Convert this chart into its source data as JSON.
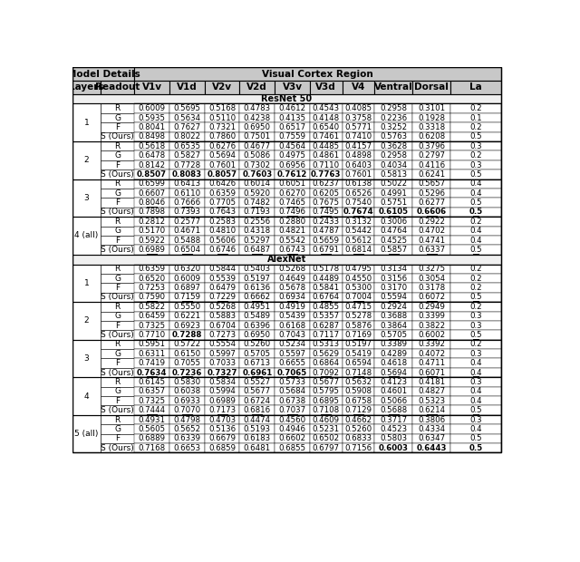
{
  "col_headers": [
    "Layers",
    "Readout",
    "V1v",
    "V1d",
    "V2v",
    "V2d",
    "V3v",
    "V3d",
    "V4",
    "Ventral",
    "Dorsal",
    "La"
  ],
  "section_resnet": "ResNet 50",
  "section_alexnet": "AlexNet",
  "resnet_data": [
    {
      "layer": "1",
      "readout": "R",
      "vals": [
        "0.6009",
        "0.5695",
        "0.5168",
        "0.4783",
        "0.4612",
        "0.4543",
        "0.4085",
        "0.2958",
        "0.3101",
        "0.2"
      ],
      "bold": [],
      "underline": []
    },
    {
      "layer": "",
      "readout": "G",
      "vals": [
        "0.5935",
        "0.5634",
        "0.5110",
        "0.4238",
        "0.4135",
        "0.4148",
        "0.3758",
        "0.2236",
        "0.1928",
        "0.1"
      ],
      "bold": [],
      "underline": []
    },
    {
      "layer": "",
      "readout": "F",
      "vals": [
        "0.8041",
        "0.7627",
        "0.7321",
        "0.6950",
        "0.6517",
        "0.6540",
        "0.5771",
        "0.3252",
        "0.3318",
        "0.2"
      ],
      "bold": [],
      "underline": []
    },
    {
      "layer": "",
      "readout": "S (Ours)",
      "vals": [
        "0.8498",
        "0.8022",
        "0.7860",
        "0.7501",
        "0.7559",
        "0.7461",
        "0.7410",
        "0.5763",
        "0.6208",
        "0.5"
      ],
      "bold": [],
      "underline": []
    },
    {
      "layer": "2",
      "readout": "R",
      "vals": [
        "0.5618",
        "0.6535",
        "0.6276",
        "0.4677",
        "0.4564",
        "0.4485",
        "0.4157",
        "0.3628",
        "0.3796",
        "0.3"
      ],
      "bold": [],
      "underline": []
    },
    {
      "layer": "",
      "readout": "G",
      "vals": [
        "0.6478",
        "0.5827",
        "0.5694",
        "0.5086",
        "0.4975",
        "0.4861",
        "0.4898",
        "0.2958",
        "0.2797",
        "0.2"
      ],
      "bold": [],
      "underline": []
    },
    {
      "layer": "",
      "readout": "F",
      "vals": [
        "0.8142",
        "0.7728",
        "0.7601",
        "0.7302",
        "0.6956",
        "0.7110",
        "0.6403",
        "0.4034",
        "0.4116",
        "0.3"
      ],
      "bold": [],
      "underline": []
    },
    {
      "layer": "",
      "readout": "S (Ours)",
      "vals": [
        "0.8507",
        "0.8083",
        "0.8057",
        "0.7603",
        "0.7612",
        "0.7763",
        "0.7601",
        "0.5813",
        "0.6241",
        "0.5"
      ],
      "bold": [
        0,
        1,
        2,
        3,
        4,
        5
      ],
      "underline": []
    },
    {
      "layer": "3",
      "readout": "R",
      "vals": [
        "0.6599",
        "0.6413",
        "0.6426",
        "0.6014",
        "0.6051",
        "0.6237",
        "0.6138",
        "0.5022",
        "0.5657",
        "0.4"
      ],
      "bold": [],
      "underline": []
    },
    {
      "layer": "",
      "readout": "G",
      "vals": [
        "0.6607",
        "0.6110",
        "0.6359",
        "0.5920",
        "0.6270",
        "0.6205",
        "0.6526",
        "0.4991",
        "0.5296",
        "0.4"
      ],
      "bold": [],
      "underline": []
    },
    {
      "layer": "",
      "readout": "F",
      "vals": [
        "0.8046",
        "0.7666",
        "0.7705",
        "0.7482",
        "0.7465",
        "0.7675",
        "0.7540",
        "0.5751",
        "0.6277",
        "0.5"
      ],
      "bold": [],
      "underline": [
        0,
        1,
        2,
        3,
        4,
        5
      ]
    },
    {
      "layer": "",
      "readout": "S (Ours)",
      "vals": [
        "0.7898",
        "0.7393",
        "0.7643",
        "0.7193",
        "0.7496",
        "0.7495",
        "0.7674",
        "0.6105",
        "0.6606",
        "0.5"
      ],
      "bold": [
        6,
        7,
        8,
        9
      ],
      "underline": [
        4,
        5,
        6,
        7,
        8,
        9
      ]
    },
    {
      "layer": "4 (all)",
      "readout": "R",
      "vals": [
        "0.2812",
        "0.2577",
        "0.2583",
        "0.2556",
        "0.2880",
        "0.2433",
        "0.3132",
        "0.3006",
        "0.2922",
        "0.2"
      ],
      "bold": [],
      "underline": []
    },
    {
      "layer": "",
      "readout": "G",
      "vals": [
        "0.5170",
        "0.4671",
        "0.4810",
        "0.4318",
        "0.4821",
        "0.4787",
        "0.5442",
        "0.4764",
        "0.4702",
        "0.4"
      ],
      "bold": [],
      "underline": []
    },
    {
      "layer": "",
      "readout": "F",
      "vals": [
        "0.5922",
        "0.5488",
        "0.5606",
        "0.5297",
        "0.5542",
        "0.5659",
        "0.5612",
        "0.4525",
        "0.4741",
        "0.4"
      ],
      "bold": [],
      "underline": []
    },
    {
      "layer": "",
      "readout": "S (Ours)",
      "vals": [
        "0.6989",
        "0.6504",
        "0.6746",
        "0.6487",
        "0.6743",
        "0.6791",
        "0.6814",
        "0.5857",
        "0.6337",
        "0.5"
      ],
      "bold": [],
      "underline": [
        0,
        1,
        2,
        3,
        4,
        5,
        6,
        7,
        8,
        9
      ]
    }
  ],
  "alexnet_data": [
    {
      "layer": "1",
      "readout": "R",
      "vals": [
        "0.6359",
        "0.6320",
        "0.5844",
        "0.5403",
        "0.5268",
        "0.5178",
        "0.4795",
        "0.3134",
        "0.3275",
        "0.2"
      ],
      "bold": [],
      "underline": []
    },
    {
      "layer": "",
      "readout": "G",
      "vals": [
        "0.6520",
        "0.6009",
        "0.5539",
        "0.5197",
        "0.4649",
        "0.4489",
        "0.4550",
        "0.3156",
        "0.3054",
        "0.2"
      ],
      "bold": [],
      "underline": []
    },
    {
      "layer": "",
      "readout": "F",
      "vals": [
        "0.7253",
        "0.6897",
        "0.6479",
        "0.6136",
        "0.5678",
        "0.5841",
        "0.5300",
        "0.3170",
        "0.3178",
        "0.2"
      ],
      "bold": [],
      "underline": []
    },
    {
      "layer": "",
      "readout": "S (Ours)",
      "vals": [
        "0.7590",
        "0.7159",
        "0.7229",
        "0.6662",
        "0.6934",
        "0.6764",
        "0.7004",
        "0.5594",
        "0.6072",
        "0.5"
      ],
      "bold": [],
      "underline": [
        0,
        1,
        2,
        3,
        4,
        5,
        6,
        7,
        8,
        9
      ]
    },
    {
      "layer": "2",
      "readout": "R",
      "vals": [
        "0.5822",
        "0.5550",
        "0.5268",
        "0.4951",
        "0.4919",
        "0.4855",
        "0.4715",
        "0.2924",
        "0.2949",
        "0.2"
      ],
      "bold": [],
      "underline": []
    },
    {
      "layer": "",
      "readout": "G",
      "vals": [
        "0.6459",
        "0.6221",
        "0.5883",
        "0.5489",
        "0.5439",
        "0.5357",
        "0.5278",
        "0.3688",
        "0.3399",
        "0.3"
      ],
      "bold": [],
      "underline": []
    },
    {
      "layer": "",
      "readout": "F",
      "vals": [
        "0.7325",
        "0.6923",
        "0.6704",
        "0.6396",
        "0.6168",
        "0.6287",
        "0.5876",
        "0.3864",
        "0.3822",
        "0.3"
      ],
      "bold": [],
      "underline": []
    },
    {
      "layer": "",
      "readout": "S (Ours)",
      "vals": [
        "0.7710",
        "0.7288",
        "0.7273",
        "0.6950",
        "0.7043",
        "0.7117",
        "0.7169",
        "0.5705",
        "0.6002",
        "0.5"
      ],
      "bold": [
        1
      ],
      "underline": [
        0,
        1,
        2,
        3,
        4,
        5,
        6,
        7,
        8,
        9
      ]
    },
    {
      "layer": "3",
      "readout": "R",
      "vals": [
        "0.5951",
        "0.5722",
        "0.5554",
        "0.5260",
        "0.5234",
        "0.5313",
        "0.5197",
        "0.3389",
        "0.3392",
        "0.2"
      ],
      "bold": [],
      "underline": []
    },
    {
      "layer": "",
      "readout": "G",
      "vals": [
        "0.6311",
        "0.6150",
        "0.5997",
        "0.5705",
        "0.5597",
        "0.5629",
        "0.5419",
        "0.4289",
        "0.4072",
        "0.3"
      ],
      "bold": [],
      "underline": []
    },
    {
      "layer": "",
      "readout": "F",
      "vals": [
        "0.7419",
        "0.7055",
        "0.7033",
        "0.6713",
        "0.6655",
        "0.6864",
        "0.6594",
        "0.4618",
        "0.4711",
        "0.4"
      ],
      "bold": [],
      "underline": []
    },
    {
      "layer": "",
      "readout": "S (Ours)",
      "vals": [
        "0.7634",
        "0.7236",
        "0.7327",
        "0.6961",
        "0.7065",
        "0.7092",
        "0.7148",
        "0.5694",
        "0.6071",
        "0.4"
      ],
      "bold": [
        0,
        1,
        2,
        3,
        4
      ],
      "underline": [
        0,
        1,
        2,
        3,
        4,
        5,
        6,
        7,
        8,
        9
      ]
    },
    {
      "layer": "4",
      "readout": "R",
      "vals": [
        "0.6145",
        "0.5830",
        "0.5834",
        "0.5527",
        "0.5733",
        "0.5677",
        "0.5632",
        "0.4123",
        "0.4181",
        "0.3"
      ],
      "bold": [],
      "underline": []
    },
    {
      "layer": "",
      "readout": "G",
      "vals": [
        "0.6357",
        "0.6038",
        "0.5994",
        "0.5677",
        "0.5684",
        "0.5795",
        "0.5908",
        "0.4601",
        "0.4827",
        "0.4"
      ],
      "bold": [],
      "underline": []
    },
    {
      "layer": "",
      "readout": "F",
      "vals": [
        "0.7325",
        "0.6933",
        "0.6989",
        "0.6724",
        "0.6738",
        "0.6895",
        "0.6758",
        "0.5066",
        "0.5323",
        "0.4"
      ],
      "bold": [],
      "underline": []
    },
    {
      "layer": "",
      "readout": "S (Ours)",
      "vals": [
        "0.7444",
        "0.7070",
        "0.7173",
        "0.6816",
        "0.7037",
        "0.7108",
        "0.7129",
        "0.5688",
        "0.6214",
        "0.5"
      ],
      "bold": [],
      "underline": [
        0,
        1,
        2,
        3,
        4,
        5,
        6,
        7,
        8,
        9
      ]
    },
    {
      "layer": "5 (all)",
      "readout": "R",
      "vals": [
        "0.4931",
        "0.4798",
        "0.4703",
        "0.4474",
        "0.4560",
        "0.4609",
        "0.4662",
        "0.3717",
        "0.3806",
        "0.3"
      ],
      "bold": [],
      "underline": []
    },
    {
      "layer": "",
      "readout": "G",
      "vals": [
        "0.5605",
        "0.5652",
        "0.5136",
        "0.5193",
        "0.4946",
        "0.5231",
        "0.5260",
        "0.4523",
        "0.4334",
        "0.4"
      ],
      "bold": [],
      "underline": []
    },
    {
      "layer": "",
      "readout": "F",
      "vals": [
        "0.6889",
        "0.6339",
        "0.6679",
        "0.6183",
        "0.6602",
        "0.6502",
        "0.6833",
        "0.5803",
        "0.6347",
        "0.5"
      ],
      "bold": [],
      "underline": []
    },
    {
      "layer": "",
      "readout": "S (Ours)",
      "vals": [
        "0.7168",
        "0.6653",
        "0.6859",
        "0.6481",
        "0.6855",
        "0.6797",
        "0.7156",
        "0.6003",
        "0.6443",
        "0.5"
      ],
      "bold": [
        7,
        8,
        9
      ],
      "underline": [
        0,
        1,
        2,
        3,
        4,
        5,
        6,
        7,
        8,
        9
      ]
    }
  ],
  "header_bg": "#c8c8c8",
  "white": "#ffffff",
  "black": "#000000",
  "section_bg": "#f0f0f0"
}
